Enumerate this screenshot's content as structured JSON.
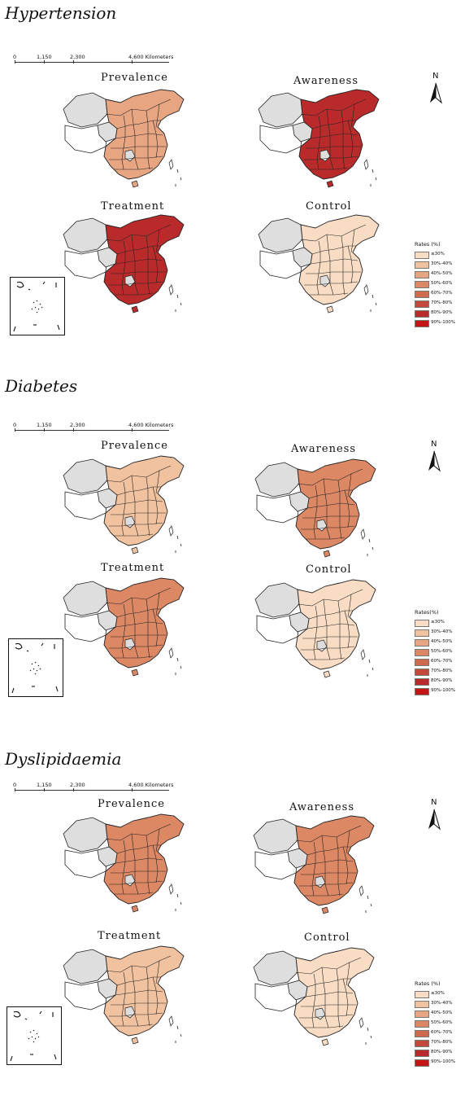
{
  "colors": {
    "no_data": "#dedede",
    "border": "#222222",
    "bins": [
      "#f9dcc4",
      "#f1c2a0",
      "#e8a582",
      "#dc8865",
      "#d06a4d",
      "#c5493a",
      "#b92b2b",
      "#c41414"
    ]
  },
  "legend": {
    "title": "Rates (%)",
    "items": [
      "≤30%",
      "30%-40%",
      "40%-50%",
      "50%-60%",
      "60%-70%",
      "70%-80%",
      "80%-90%",
      "90%-100%"
    ]
  },
  "scale": {
    "labels": [
      "0",
      "1,150",
      "2,300",
      "4,600 Kilometers"
    ]
  },
  "north_label": "N",
  "panel_labels": [
    "Prevalence",
    "Awareness",
    "Treatment",
    "Control"
  ],
  "sections": [
    {
      "title": "Hypertension",
      "legend_title": "Rates (%)",
      "map_bins": {
        "prevalence": 2,
        "awareness": 6,
        "treatment": 6,
        "control": 0
      }
    },
    {
      "title": "Diabetes",
      "legend_title": "Rates(%)",
      "map_bins": {
        "prevalence": 1,
        "awareness": 3,
        "treatment": 3,
        "control": 0
      }
    },
    {
      "title": "Dyslipidaemia",
      "legend_title": "Rates (%)",
      "map_bins": {
        "prevalence": 3,
        "awareness": 3,
        "treatment": 1,
        "control": 0
      }
    }
  ]
}
